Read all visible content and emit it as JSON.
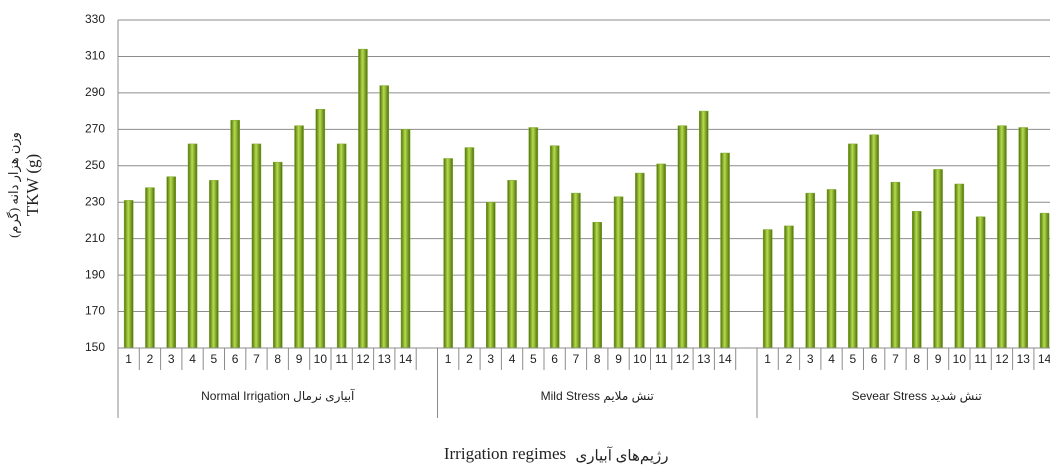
{
  "chart_data": {
    "type": "bar",
    "ylabel": "TKW (g)",
    "ylabel_fa": "وزن هزار دانه (گرم)",
    "xlabel": "Irrigation regimes",
    "xlabel_fa": "رژیم‌های آبیاری",
    "color": "#7ea82a",
    "grid": true,
    "ylim": [
      150,
      330
    ],
    "yticks": [
      150,
      170,
      190,
      210,
      230,
      250,
      270,
      290,
      310,
      330
    ],
    "groups": [
      {
        "name": "Normal Irrigation آبیاری نرمال",
        "categories": [
          "1",
          "2",
          "3",
          "4",
          "5",
          "6",
          "7",
          "8",
          "9",
          "10",
          "11",
          "12",
          "13",
          "14"
        ],
        "values": [
          231,
          238,
          244,
          262,
          242,
          275,
          262,
          252,
          272,
          281,
          262,
          314,
          294,
          270
        ]
      },
      {
        "name": "Mild Stress تنش ملایم",
        "categories": [
          "1",
          "2",
          "3",
          "4",
          "5",
          "6",
          "7",
          "8",
          "9",
          "10",
          "11",
          "12",
          "13",
          "14"
        ],
        "values": [
          254,
          260,
          230,
          242,
          271,
          261,
          235,
          219,
          233,
          246,
          251,
          272,
          280,
          257
        ]
      },
      {
        "name": "Sevear Stress تنش شدید",
        "categories": [
          "1",
          "2",
          "3",
          "4",
          "5",
          "6",
          "7",
          "8",
          "9",
          "10",
          "11",
          "12",
          "13",
          "14"
        ],
        "values": [
          215,
          217,
          235,
          237,
          262,
          267,
          241,
          225,
          248,
          240,
          222,
          272,
          271,
          224
        ]
      }
    ]
  }
}
